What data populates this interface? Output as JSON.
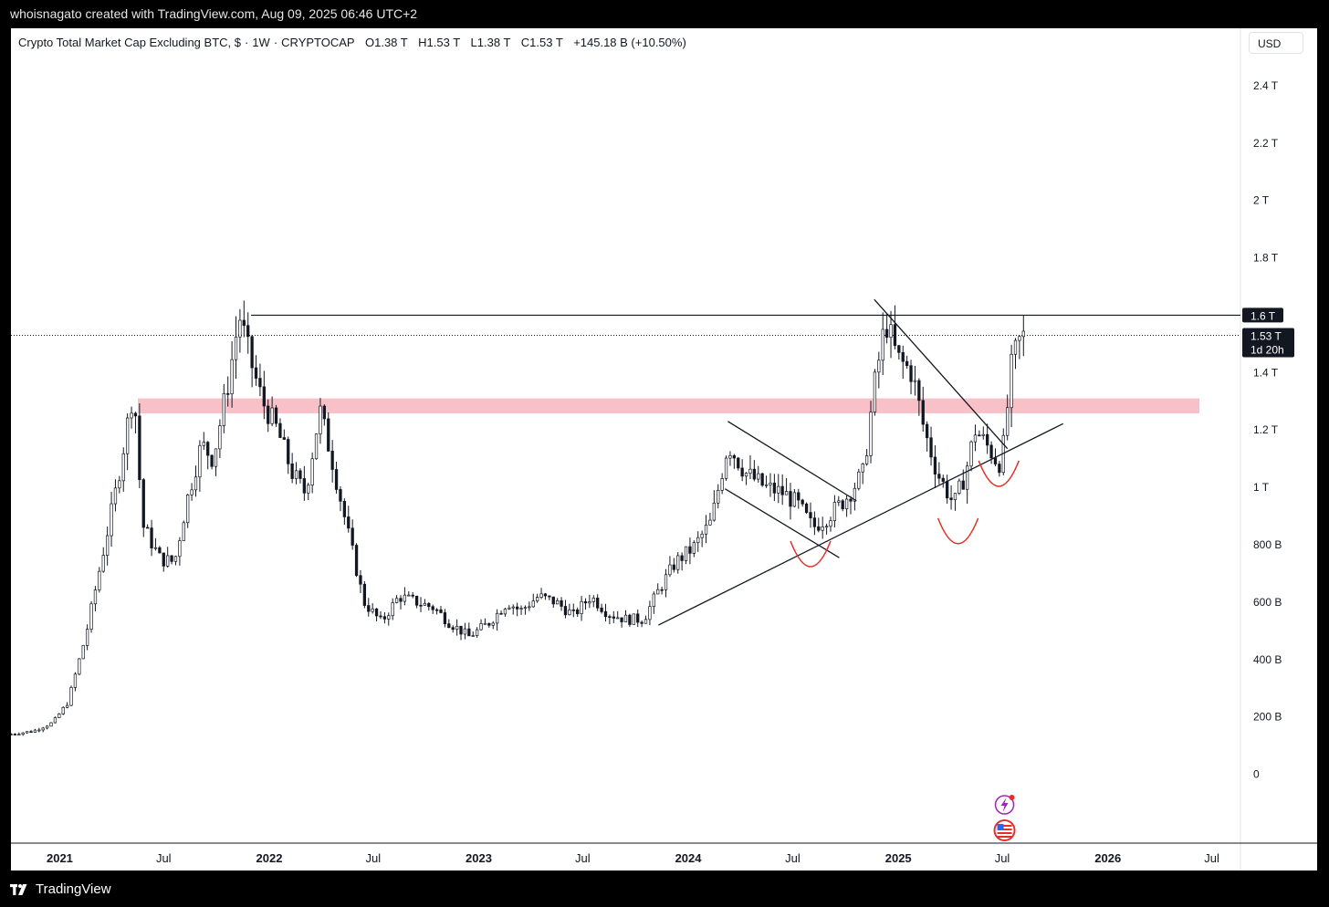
{
  "header": {
    "text": "whoisnagato created with TradingView.com, Aug 09, 2025 06:46 UTC+2"
  },
  "footer": {
    "brand": "TradingView"
  },
  "legend": {
    "symbol": "Crypto Total Market Cap Excluding BTC, $",
    "interval": "1W",
    "exchange": "CRYPTOCAP",
    "open": "O1.38 T",
    "high": "H1.53 T",
    "low": "L1.38 T",
    "close": "C1.53 T",
    "change": "+145.18 B (+10.50%)"
  },
  "currency_button": "USD",
  "chart_data": {
    "type": "candlestick",
    "title": "Crypto Total Market Cap Excluding BTC, $ · 1W · CRYPTOCAP",
    "y_unit": "USD",
    "y_axis_labels": [
      "2.4 T",
      "2.2 T",
      "2 T",
      "1.8 T",
      "1.6 T",
      "1.4 T",
      "1.2 T",
      "1 T",
      "800 B",
      "600 B",
      "400 B",
      "200 B",
      "0"
    ],
    "y_axis_values_billion": [
      2400,
      2200,
      2000,
      1800,
      1600,
      1400,
      1200,
      1000,
      800,
      600,
      400,
      200,
      0
    ],
    "ylim_billion": [
      -240,
      2600
    ],
    "xlim": [
      "2020-10-08",
      "2026-08-20"
    ],
    "x_axis_labels": [
      {
        "label": "2021",
        "date": "2021-01-01",
        "year": true
      },
      {
        "label": "Jul",
        "date": "2021-07-01",
        "year": false
      },
      {
        "label": "2022",
        "date": "2022-01-01",
        "year": true
      },
      {
        "label": "Jul",
        "date": "2022-07-01",
        "year": false
      },
      {
        "label": "2023",
        "date": "2023-01-01",
        "year": true
      },
      {
        "label": "Jul",
        "date": "2023-07-01",
        "year": false
      },
      {
        "label": "2024",
        "date": "2024-01-01",
        "year": true
      },
      {
        "label": "Jul",
        "date": "2024-07-01",
        "year": false
      },
      {
        "label": "2025",
        "date": "2025-01-01",
        "year": true
      },
      {
        "label": "Jul",
        "date": "2025-07-01",
        "year": false
      },
      {
        "label": "2026",
        "date": "2026-01-01",
        "year": true
      },
      {
        "label": "Jul",
        "date": "2026-07-01",
        "year": false
      }
    ],
    "price_tags": [
      {
        "label": "1.6 T",
        "value_billion": 1600,
        "sub": ""
      },
      {
        "label": "1.53 T",
        "value_billion": 1530,
        "sub": "1d 20h"
      }
    ],
    "close_path_billion": [
      [
        "2020-10-08",
        140
      ],
      [
        "2020-11-15",
        150
      ],
      [
        "2020-12-20",
        180
      ],
      [
        "2021-01-15",
        250
      ],
      [
        "2021-02-15",
        480
      ],
      [
        "2021-03-10",
        700
      ],
      [
        "2021-04-10",
        1000
      ],
      [
        "2021-05-10",
        1350
      ],
      [
        "2021-05-25",
        870
      ],
      [
        "2021-06-25",
        750
      ],
      [
        "2021-07-20",
        740
      ],
      [
        "2021-08-10",
        950
      ],
      [
        "2021-09-05",
        1150
      ],
      [
        "2021-09-25",
        1100
      ],
      [
        "2021-10-20",
        1350
      ],
      [
        "2021-11-10",
        1600
      ],
      [
        "2021-11-28",
        1450
      ],
      [
        "2021-12-20",
        1300
      ],
      [
        "2022-01-15",
        1200
      ],
      [
        "2022-02-10",
        1050
      ],
      [
        "2022-03-05",
        980
      ],
      [
        "2022-03-30",
        1270
      ],
      [
        "2022-04-20",
        1100
      ],
      [
        "2022-05-15",
        870
      ],
      [
        "2022-06-15",
        600
      ],
      [
        "2022-07-15",
        530
      ],
      [
        "2022-08-15",
        620
      ],
      [
        "2022-09-15",
        600
      ],
      [
        "2022-10-15",
        580
      ],
      [
        "2022-11-10",
        530
      ],
      [
        "2022-12-15",
        480
      ],
      [
        "2023-01-20",
        530
      ],
      [
        "2023-02-20",
        600
      ],
      [
        "2023-03-15",
        570
      ],
      [
        "2023-04-15",
        620
      ],
      [
        "2023-05-15",
        600
      ],
      [
        "2023-06-15",
        555
      ],
      [
        "2023-07-15",
        620
      ],
      [
        "2023-08-15",
        560
      ],
      [
        "2023-09-15",
        540
      ],
      [
        "2023-10-15",
        540
      ],
      [
        "2023-11-10",
        640
      ],
      [
        "2023-12-10",
        740
      ],
      [
        "2024-01-10",
        790
      ],
      [
        "2024-02-10",
        880
      ],
      [
        "2024-03-10",
        1150
      ],
      [
        "2024-04-10",
        1050
      ],
      [
        "2024-05-15",
        1000
      ],
      [
        "2024-06-15",
        980
      ],
      [
        "2024-07-10",
        940
      ],
      [
        "2024-08-05",
        860
      ],
      [
        "2024-09-01",
        900
      ],
      [
        "2024-10-01",
        960
      ],
      [
        "2024-11-01",
        1050
      ],
      [
        "2024-11-20",
        1350
      ],
      [
        "2024-12-10",
        1580
      ],
      [
        "2024-12-30",
        1450
      ],
      [
        "2025-01-25",
        1400
      ],
      [
        "2025-02-15",
        1200
      ],
      [
        "2025-03-10",
        1050
      ],
      [
        "2025-04-08",
        940
      ],
      [
        "2025-04-28",
        1050
      ],
      [
        "2025-05-15",
        1200
      ],
      [
        "2025-06-10",
        1130
      ],
      [
        "2025-06-25",
        1080
      ],
      [
        "2025-07-05",
        1160
      ],
      [
        "2025-07-15",
        1400
      ],
      [
        "2025-07-28",
        1500
      ],
      [
        "2025-08-09",
        1530
      ]
    ],
    "annotations": {
      "horizontal_lines_billion": [
        1600
      ],
      "zones_billion": [
        {
          "from": 1258,
          "to": 1310,
          "color": "#f7b6be"
        }
      ],
      "trend_lines": [
        {
          "from": [
            "2023-11-10",
            520
          ],
          "to": [
            "2025-10-15",
            1222
          ]
        },
        {
          "from": [
            "2024-11-20",
            1655
          ],
          "to": [
            "2025-07-10",
            1135
          ]
        },
        {
          "from": [
            "2024-03-10",
            1230
          ],
          "to": [
            "2024-10-20",
            953
          ]
        },
        {
          "from": [
            "2024-03-05",
            995
          ],
          "to": [
            "2024-09-20",
            755
          ]
        }
      ],
      "curves": [
        {
          "center": [
            "2024-08-01",
            730
          ],
          "color": "#e0302a"
        },
        {
          "center": [
            "2025-04-15",
            810
          ],
          "color": "#e0302a"
        },
        {
          "center": [
            "2025-06-25",
            1010
          ],
          "color": "#e0302a"
        }
      ]
    }
  }
}
